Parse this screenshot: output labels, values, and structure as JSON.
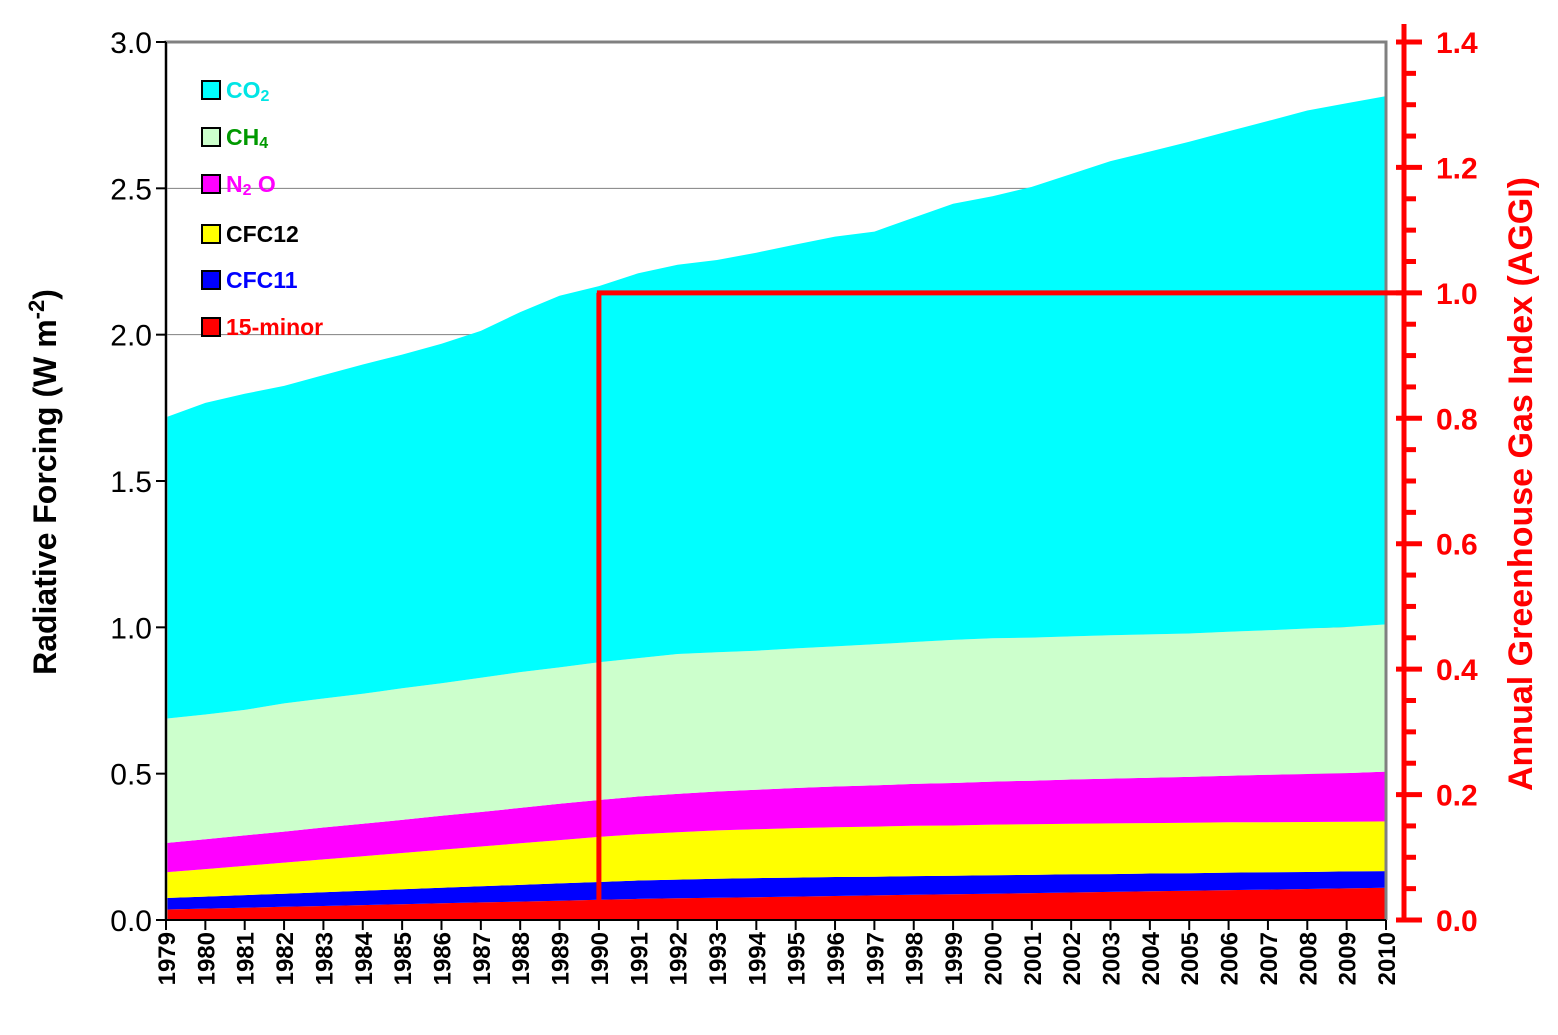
{
  "chart_data": {
    "type": "area",
    "stacked": true,
    "title": "",
    "xlabel": "",
    "ylabel": "Radiative Forcing (W m",
    "ylabel_sup": "-2",
    "ylabel_close": ")",
    "y2label": "Annual Greenhouse Gas Index (AGGI)",
    "x": [
      1979,
      1980,
      1981,
      1982,
      1983,
      1984,
      1985,
      1986,
      1987,
      1988,
      1989,
      1990,
      1991,
      1992,
      1993,
      1994,
      1995,
      1996,
      1997,
      1998,
      1999,
      2000,
      2001,
      2002,
      2003,
      2004,
      2005,
      2006,
      2007,
      2008,
      2009,
      2010
    ],
    "ylim": [
      0,
      3.0
    ],
    "y2lim": [
      0,
      1.4
    ],
    "yticks": [
      "0.0",
      "0.5",
      "1.0",
      "1.5",
      "2.0",
      "2.5",
      "3.0"
    ],
    "y2ticks": [
      "0.0",
      "0.2",
      "0.4",
      "0.6",
      "0.8",
      "1.0",
      "1.2",
      "1.4"
    ],
    "series": [
      {
        "name": "15-minor",
        "color": "#ff0000",
        "values": [
          0.036,
          0.039,
          0.042,
          0.045,
          0.048,
          0.051,
          0.054,
          0.057,
          0.06,
          0.063,
          0.066,
          0.069,
          0.072,
          0.074,
          0.076,
          0.078,
          0.08,
          0.082,
          0.084,
          0.086,
          0.088,
          0.09,
          0.092,
          0.094,
          0.096,
          0.098,
          0.1,
          0.102,
          0.104,
          0.106,
          0.108,
          0.11
        ]
      },
      {
        "name": "CFC11",
        "color": "#0000ff",
        "values": [
          0.039,
          0.041,
          0.043,
          0.045,
          0.047,
          0.049,
          0.051,
          0.053,
          0.055,
          0.057,
          0.059,
          0.061,
          0.063,
          0.064,
          0.065,
          0.065,
          0.065,
          0.065,
          0.064,
          0.064,
          0.063,
          0.063,
          0.062,
          0.062,
          0.061,
          0.061,
          0.06,
          0.06,
          0.059,
          0.058,
          0.058,
          0.057
        ]
      },
      {
        "name": "CFC12",
        "color": "#ffff00",
        "values": [
          0.088,
          0.094,
          0.1,
          0.106,
          0.112,
          0.118,
          0.124,
          0.13,
          0.136,
          0.142,
          0.148,
          0.154,
          0.158,
          0.162,
          0.165,
          0.167,
          0.169,
          0.17,
          0.171,
          0.172,
          0.172,
          0.173,
          0.173,
          0.173,
          0.173,
          0.172,
          0.172,
          0.172,
          0.171,
          0.171,
          0.17,
          0.17
        ]
      },
      {
        "name": "N2O",
        "color": "#ff00ff",
        "values": [
          0.1,
          0.102,
          0.104,
          0.106,
          0.109,
          0.111,
          0.113,
          0.116,
          0.118,
          0.121,
          0.124,
          0.126,
          0.129,
          0.131,
          0.133,
          0.135,
          0.137,
          0.139,
          0.141,
          0.143,
          0.145,
          0.147,
          0.149,
          0.151,
          0.153,
          0.155,
          0.157,
          0.159,
          0.162,
          0.164,
          0.166,
          0.17
        ]
      },
      {
        "name": "CH4",
        "color": "#ccffcc",
        "values": [
          0.425,
          0.426,
          0.429,
          0.438,
          0.441,
          0.444,
          0.45,
          0.453,
          0.459,
          0.464,
          0.466,
          0.471,
          0.473,
          0.478,
          0.476,
          0.475,
          0.477,
          0.479,
          0.482,
          0.485,
          0.489,
          0.49,
          0.489,
          0.489,
          0.49,
          0.49,
          0.49,
          0.492,
          0.494,
          0.497,
          0.499,
          0.503
        ]
      },
      {
        "name": "CO2",
        "color": "#00ffff",
        "values": [
          1.03,
          1.065,
          1.08,
          1.085,
          1.105,
          1.125,
          1.14,
          1.16,
          1.185,
          1.23,
          1.27,
          1.285,
          1.315,
          1.33,
          1.34,
          1.36,
          1.38,
          1.4,
          1.41,
          1.45,
          1.49,
          1.51,
          1.54,
          1.58,
          1.62,
          1.65,
          1.68,
          1.71,
          1.74,
          1.77,
          1.79,
          1.805
        ]
      }
    ],
    "aggi_reference": {
      "x_start": 1990,
      "x_end": 2010,
      "value": 1.0,
      "color": "#ff0000"
    },
    "grid": true,
    "legend_position": "top-left",
    "legend": [
      {
        "base": "CO",
        "sub": "2",
        "after": "",
        "color": "#00ffff",
        "text_color": "#00e5e5"
      },
      {
        "base": "CH",
        "sub": "4",
        "after": "",
        "color": "#ccffcc",
        "text_color": "#009900"
      },
      {
        "base": "N",
        "sub": "2",
        "after": " O",
        "color": "#ff00ff",
        "text_color": "#ff00ff"
      },
      {
        "base": "CFC12",
        "sub": "",
        "after": "",
        "color": "#ffff00",
        "text_color": "#000000"
      },
      {
        "base": "CFC11",
        "sub": "",
        "after": "",
        "color": "#0000ff",
        "text_color": "#0000ff"
      },
      {
        "base": "15-minor",
        "sub": "",
        "after": "",
        "color": "#ff0000",
        "text_color": "#ff0000"
      }
    ]
  }
}
